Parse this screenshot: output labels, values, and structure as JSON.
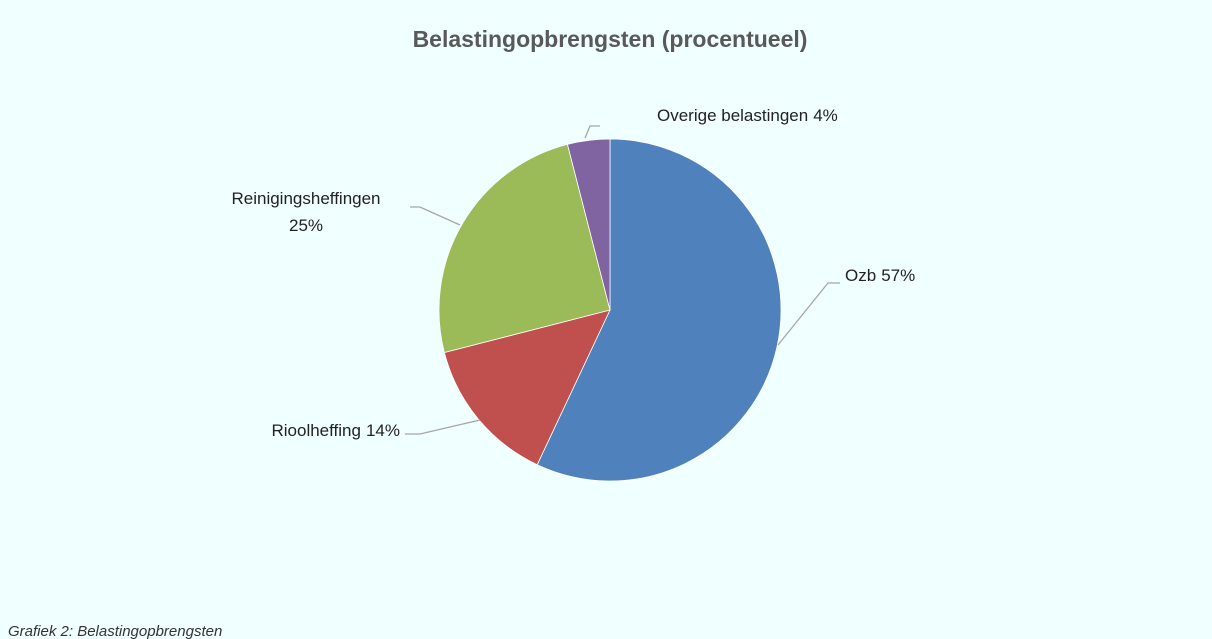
{
  "chart_data": {
    "type": "pie",
    "title": "Belastingopbrengsten  (procentueel)",
    "categories": [
      "Ozb",
      "Rioolheffing",
      "Reinigingsheffingen",
      "Overige belastingen"
    ],
    "values": [
      57,
      14,
      25,
      4
    ],
    "value_labels": [
      "57%",
      "14%",
      "25%",
      "4%"
    ],
    "colors": [
      "#4f81bd",
      "#c0504d",
      "#9bbb59",
      "#8064a2"
    ],
    "caption": "Grafiek 2: Belastingopbrengsten"
  }
}
